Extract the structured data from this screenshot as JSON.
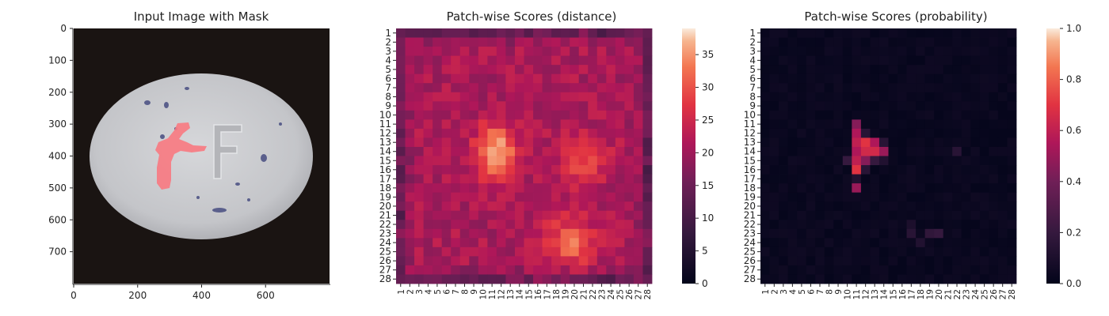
{
  "chart_data": [
    {
      "type": "image",
      "title": "Input Image with Mask",
      "xticks": [
        0,
        200,
        400,
        600
      ],
      "yticks": [
        0,
        100,
        200,
        300,
        400,
        500,
        600,
        700
      ],
      "xlim": [
        0,
        800
      ],
      "ylim": [
        800,
        0
      ],
      "image_description_colors": {
        "background": "#1a1412",
        "pill": "#c8c9cc",
        "mask": "#f77b82"
      }
    },
    {
      "type": "heatmap",
      "title": "Patch-wise Scores (distance)",
      "rows": [
        "1",
        "2",
        "3",
        "4",
        "5",
        "6",
        "7",
        "8",
        "9",
        "10",
        "11",
        "12",
        "13",
        "14",
        "15",
        "16",
        "17",
        "18",
        "19",
        "20",
        "21",
        "22",
        "23",
        "24",
        "25",
        "26",
        "27",
        "28"
      ],
      "cols": [
        "1",
        "2",
        "3",
        "4",
        "5",
        "6",
        "7",
        "8",
        "9",
        "10",
        "11",
        "12",
        "13",
        "14",
        "15",
        "16",
        "17",
        "18",
        "19",
        "20",
        "21",
        "22",
        "23",
        "24",
        "25",
        "26",
        "27",
        "28"
      ],
      "colorbar": {
        "min": 0,
        "max": 39,
        "ticks": [
          0,
          5,
          10,
          15,
          20,
          25,
          30,
          35
        ],
        "colormap": "rocket"
      },
      "hotspots": [
        {
          "row": 14,
          "col": 11.5,
          "value": 38
        },
        {
          "row": 24,
          "col": 19.5,
          "value": 33
        },
        {
          "row": 15,
          "col": 21,
          "value": 30
        }
      ]
    },
    {
      "type": "heatmap",
      "title": "Patch-wise Scores (probability)",
      "rows": [
        "1",
        "2",
        "3",
        "4",
        "5",
        "6",
        "7",
        "8",
        "9",
        "10",
        "11",
        "12",
        "13",
        "14",
        "15",
        "16",
        "17",
        "18",
        "19",
        "20",
        "21",
        "22",
        "23",
        "24",
        "25",
        "26",
        "27",
        "28"
      ],
      "cols": [
        "1",
        "2",
        "3",
        "4",
        "5",
        "6",
        "7",
        "8",
        "9",
        "10",
        "11",
        "12",
        "13",
        "14",
        "15",
        "16",
        "17",
        "18",
        "19",
        "20",
        "21",
        "22",
        "23",
        "24",
        "25",
        "26",
        "27",
        "28"
      ],
      "colorbar": {
        "min": 0.0,
        "max": 1.0,
        "ticks": [
          "0.0",
          "0.2",
          "0.4",
          "0.6",
          "0.8",
          "1.0"
        ],
        "colormap": "rocket"
      },
      "cells": [
        {
          "row": 11,
          "col": 11,
          "value": 0.45
        },
        {
          "row": 12,
          "col": 11,
          "value": 0.55
        },
        {
          "row": 12,
          "col": 12,
          "value": 0.15
        },
        {
          "row": 13,
          "col": 11,
          "value": 0.6
        },
        {
          "row": 13,
          "col": 12,
          "value": 0.7
        },
        {
          "row": 13,
          "col": 13,
          "value": 0.55
        },
        {
          "row": 13,
          "col": 14,
          "value": 0.15
        },
        {
          "row": 14,
          "col": 11,
          "value": 0.55
        },
        {
          "row": 14,
          "col": 12,
          "value": 0.65
        },
        {
          "row": 14,
          "col": 13,
          "value": 0.65
        },
        {
          "row": 14,
          "col": 14,
          "value": 0.5
        },
        {
          "row": 15,
          "col": 10,
          "value": 0.2
        },
        {
          "row": 15,
          "col": 11,
          "value": 0.6
        },
        {
          "row": 15,
          "col": 12,
          "value": 0.45
        },
        {
          "row": 15,
          "col": 13,
          "value": 0.2
        },
        {
          "row": 15,
          "col": 14,
          "value": 0.12
        },
        {
          "row": 16,
          "col": 11,
          "value": 0.7
        },
        {
          "row": 16,
          "col": 12,
          "value": 0.15
        },
        {
          "row": 17,
          "col": 11,
          "value": 0.12
        },
        {
          "row": 18,
          "col": 11,
          "value": 0.5
        },
        {
          "row": 14,
          "col": 22,
          "value": 0.15
        },
        {
          "row": 22,
          "col": 17,
          "value": 0.1
        },
        {
          "row": 23,
          "col": 17,
          "value": 0.15
        },
        {
          "row": 23,
          "col": 19,
          "value": 0.18
        },
        {
          "row": 23,
          "col": 20,
          "value": 0.2
        },
        {
          "row": 24,
          "col": 18,
          "value": 0.12
        }
      ]
    }
  ]
}
